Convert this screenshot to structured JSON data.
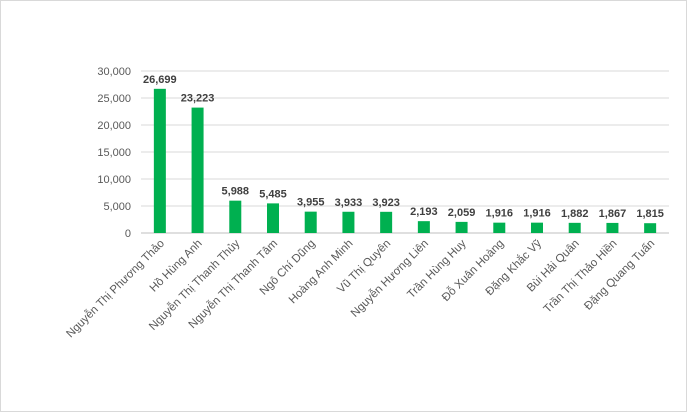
{
  "chart_data": {
    "type": "bar",
    "categories": [
      "Nguyễn Thị Phương Thảo",
      "Hồ Hùng Anh",
      "Nguyễn Thị Thanh Thủy",
      "Nguyễn Thị Thanh Tâm",
      "Ngô Chí Dũng",
      "Hoàng Anh Minh",
      "Vũ Thị Quyên",
      "Nguyễn Hương Liên",
      "Trần Hùng Huy",
      "Đỗ Xuân Hoàng",
      "Đặng Khắc Vỹ",
      "Bùi Hải Quân",
      "Trần Thị Thảo Hiền",
      "Đặng Quang Tuấn"
    ],
    "values": [
      26699,
      23223,
      5988,
      5485,
      3955,
      3933,
      3923,
      2193,
      2059,
      1916,
      1916,
      1882,
      1867,
      1815
    ],
    "data_labels": [
      "26,699",
      "23,223",
      "5,988",
      "5,485",
      "3,955",
      "3,933",
      "3,923",
      "2,193",
      "2,059",
      "1,916",
      "1,916",
      "1,882",
      "1,867",
      "1,815"
    ],
    "yticks": [
      0,
      5000,
      10000,
      15000,
      20000,
      25000,
      30000
    ],
    "ytick_labels": [
      "0",
      "5,000",
      "10,000",
      "15,000",
      "20,000",
      "25,000",
      "30,000"
    ],
    "ylim": [
      0,
      30000
    ],
    "grid": true,
    "legend": "none",
    "title": "",
    "xlabel": "",
    "ylabel": "",
    "colors": {
      "bar": "#00b050",
      "grid": "#d9d9d9",
      "text": "#595959",
      "data_label": "#404040"
    }
  }
}
